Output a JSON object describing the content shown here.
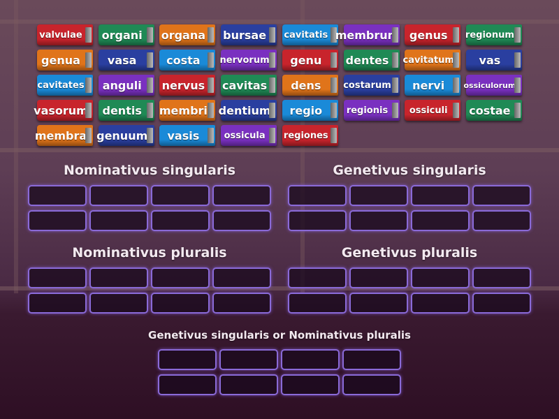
{
  "colors": {
    "red": "#c8242c",
    "green": "#1f8a55",
    "orange": "#e0741a",
    "darkblue": "#2a3fa0",
    "lightblue": "#1a8ad8",
    "purple": "#7a30c0"
  },
  "books": [
    [
      {
        "t": "valvulae",
        "c": "red"
      },
      {
        "t": "organi",
        "c": "green"
      },
      {
        "t": "organa",
        "c": "orange"
      },
      {
        "t": "bursae",
        "c": "darkblue"
      },
      {
        "t": "cavitatis",
        "c": "lightblue"
      },
      {
        "t": "membrum",
        "c": "purple"
      },
      {
        "t": "genus",
        "c": "red"
      },
      {
        "t": "regionum",
        "c": "green"
      }
    ],
    [
      {
        "t": "genua",
        "c": "orange"
      },
      {
        "t": "vasa",
        "c": "darkblue"
      },
      {
        "t": "costa",
        "c": "lightblue"
      },
      {
        "t": "nervorum",
        "c": "purple"
      },
      {
        "t": "genu",
        "c": "red"
      },
      {
        "t": "dentes",
        "c": "green"
      },
      {
        "t": "cavitatum",
        "c": "orange"
      },
      {
        "t": "vas",
        "c": "darkblue"
      }
    ],
    [
      {
        "t": "cavitates",
        "c": "lightblue"
      },
      {
        "t": "anguli",
        "c": "purple"
      },
      {
        "t": "nervus",
        "c": "red"
      },
      {
        "t": "cavitas",
        "c": "green"
      },
      {
        "t": "dens",
        "c": "orange"
      },
      {
        "t": "costarum",
        "c": "darkblue"
      },
      {
        "t": "nervi",
        "c": "lightblue"
      },
      {
        "t": "ossiculorum",
        "c": "purple"
      }
    ],
    [
      {
        "t": "vasorum",
        "c": "red"
      },
      {
        "t": "dentis",
        "c": "green"
      },
      {
        "t": "membri",
        "c": "orange"
      },
      {
        "t": "dentium",
        "c": "darkblue"
      },
      {
        "t": "regio",
        "c": "lightblue"
      },
      {
        "t": "regionis",
        "c": "purple"
      },
      {
        "t": "ossiculi",
        "c": "red"
      },
      {
        "t": "costae",
        "c": "green"
      }
    ],
    [
      {
        "t": "membra",
        "c": "orange"
      },
      {
        "t": "genuum",
        "c": "darkblue"
      },
      {
        "t": "vasis",
        "c": "lightblue"
      },
      {
        "t": "ossicula",
        "c": "purple"
      },
      {
        "t": "regiones",
        "c": "red"
      }
    ]
  ],
  "groups": [
    {
      "title": "Nominativus singularis"
    },
    {
      "title": "Genetivus singularis"
    },
    {
      "title": "Nominativus pluralis"
    },
    {
      "title": "Genetivus pluralis"
    },
    {
      "title": "Genetivus singularis or Nominativus pluralis"
    }
  ]
}
